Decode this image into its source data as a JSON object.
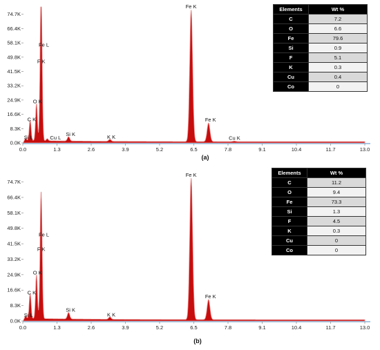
{
  "chart_data": [
    {
      "type": "area",
      "panel_label": "(a)",
      "x_ticks": [
        "0.0",
        "1.3",
        "2.6",
        "3.9",
        "5.2",
        "6.5",
        "7.8",
        "9.1",
        "10.4",
        "11.7",
        "13.0"
      ],
      "y_ticks": [
        "0.0K",
        "8.3K",
        "16.6K",
        "24.9K",
        "33.2K",
        "41.5K",
        "49.8K",
        "58.1K",
        "66.4K",
        "74.7K"
      ],
      "xlim": [
        0,
        13.0
      ],
      "ylim": [
        0,
        79000
      ],
      "peaks": [
        {
          "label": "C  K",
          "x": 0.28,
          "y": 11800
        },
        {
          "label": "O  K",
          "x": 0.52,
          "y": 21500
        },
        {
          "label": "F  K",
          "x": 0.68,
          "y": 44000
        },
        {
          "label": "Fe L",
          "x": 0.71,
          "y": 49500
        },
        {
          "label": "Si L",
          "x": 0.1,
          "y": 1500
        },
        {
          "label": "Cu L",
          "x": 0.93,
          "y": 1200
        },
        {
          "label": "Si K",
          "x": 1.74,
          "y": 2500
        },
        {
          "label": "K  K",
          "x": 3.31,
          "y": 1200
        },
        {
          "label": "Fe K",
          "x": 6.4,
          "y": 76500
        },
        {
          "label": "Fe K",
          "x": 7.06,
          "y": 10800
        },
        {
          "label": "Cu K",
          "x": 8.04,
          "y": 300
        }
      ],
      "table": {
        "headers": [
          "Elements",
          "Wt %"
        ],
        "rows": [
          [
            "C",
            "7.2"
          ],
          [
            "O",
            "6.6"
          ],
          [
            "Fe",
            "79.6"
          ],
          [
            "Si",
            "0.9"
          ],
          [
            "F",
            "5.1"
          ],
          [
            "K",
            "0.3"
          ],
          [
            "Cu",
            "0.4"
          ],
          [
            "Co",
            "0"
          ]
        ]
      }
    },
    {
      "type": "area",
      "panel_label": "(b)",
      "x_ticks": [
        "0.0",
        "1.3",
        "2.6",
        "3.9",
        "5.2",
        "6.5",
        "7.8",
        "9.1",
        "10.4",
        "11.7",
        "13.0"
      ],
      "y_ticks": [
        "0.0K",
        "8.3K",
        "16.6K",
        "24.9K",
        "33.2K",
        "41.5K",
        "49.8K",
        "58.1K",
        "66.4K",
        "74.7K"
      ],
      "xlim": [
        0,
        13.0
      ],
      "ylim": [
        0,
        79000
      ],
      "peaks": [
        {
          "label": "C  K",
          "x": 0.28,
          "y": 13500
        },
        {
          "label": "O  K",
          "x": 0.52,
          "y": 23500
        },
        {
          "label": "F  K",
          "x": 0.68,
          "y": 35500
        },
        {
          "label": "Fe L",
          "x": 0.71,
          "y": 39500
        },
        {
          "label": "Si L",
          "x": 0.1,
          "y": 1500
        },
        {
          "label": "Si K",
          "x": 1.74,
          "y": 3500
        },
        {
          "label": "K  K",
          "x": 3.31,
          "y": 1300
        },
        {
          "label": "Fe K",
          "x": 6.4,
          "y": 76000
        },
        {
          "label": "Fe K",
          "x": 7.06,
          "y": 10800
        }
      ],
      "table": {
        "headers": [
          "Elements",
          "Wt %"
        ],
        "rows": [
          [
            "C",
            "11.2"
          ],
          [
            "O",
            "9.4"
          ],
          [
            "Fe",
            "73.3"
          ],
          [
            "Si",
            "1.3"
          ],
          [
            "F",
            "4.5"
          ],
          [
            "K",
            "0.3"
          ],
          [
            "Cu",
            "0"
          ],
          [
            "Co",
            "0"
          ]
        ]
      }
    }
  ],
  "colors": {
    "fill": "#c40000",
    "fill_light": "#e88a8a",
    "axis": "#8fb6d8",
    "table_header_bg": "#000000"
  }
}
